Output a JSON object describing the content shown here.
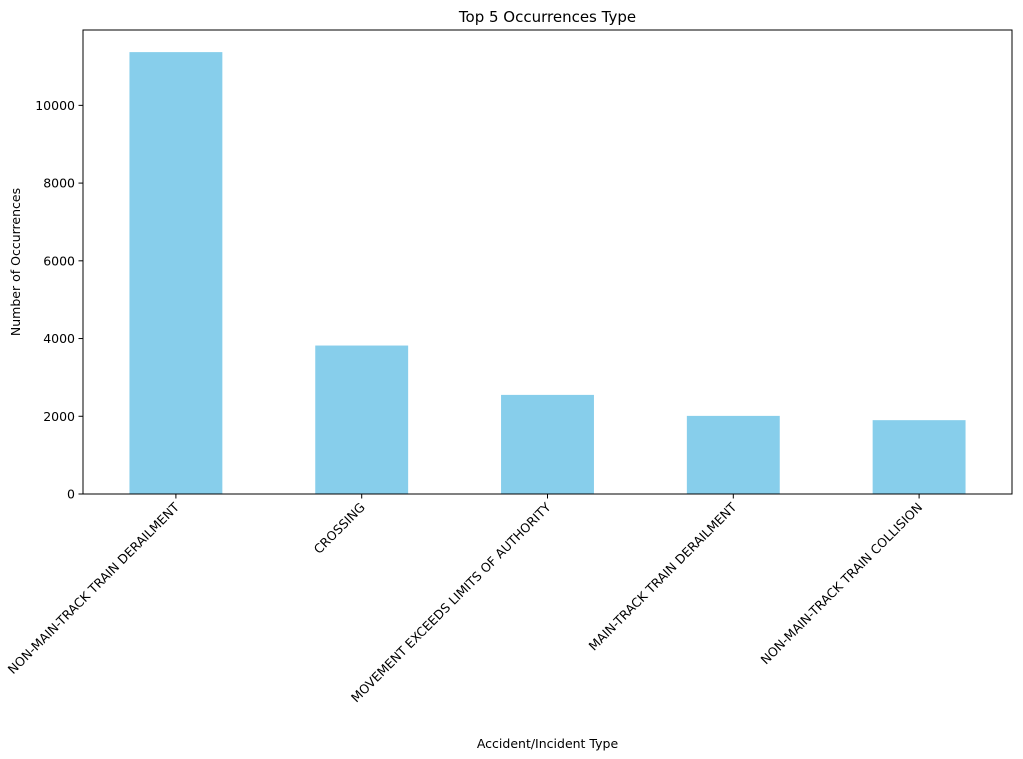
{
  "chart_data": {
    "type": "bar",
    "title": "Top 5 Occurrences Type",
    "xlabel": "Accident/Incident Type",
    "ylabel": "Number of Occurrences",
    "categories": [
      "NON-MAIN-TRACK TRAIN DERAILMENT",
      "CROSSING",
      "MOVEMENT EXCEEDS LIMITS OF AUTHORITY",
      "MAIN-TRACK TRAIN DERAILMENT",
      "NON-MAIN-TRACK TRAIN COLLISION"
    ],
    "values": [
      11370,
      3820,
      2550,
      2010,
      1900
    ],
    "ylim": [
      0,
      11939
    ],
    "yticks": [
      0,
      2000,
      4000,
      6000,
      8000,
      10000
    ],
    "bar_color": "#87ceeb",
    "grid": false,
    "legend": false
  }
}
